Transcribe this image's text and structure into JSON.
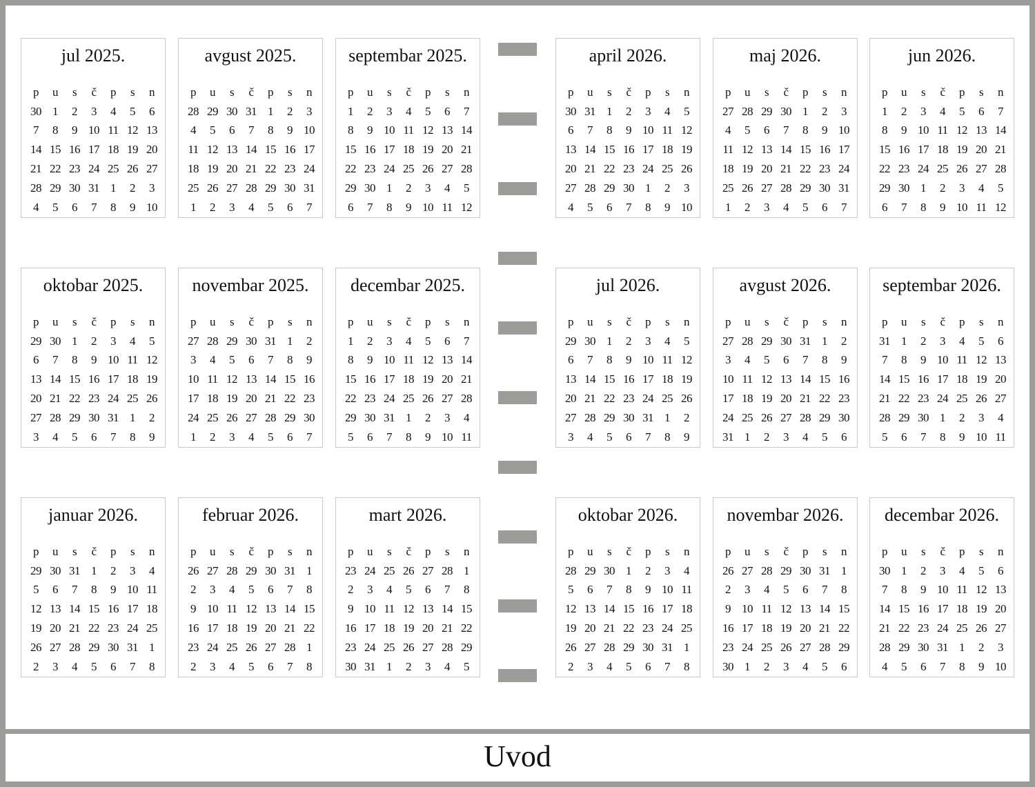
{
  "weekdays": [
    "p",
    "u",
    "s",
    "č",
    "p",
    "s",
    "n"
  ],
  "footer_title": "Uvod",
  "colors": {
    "frame": "#9c9c98",
    "box_border": "#c8c8c8"
  },
  "months": [
    {
      "title": "jul 2025.",
      "weeks": [
        "30 1 2 3 4 5 6",
        "7 8 9 10 11 12 13",
        "14 15 16 17 18 19 20",
        "21 22 23 24 25 26 27",
        "28 29 30 31 1 2 3",
        "4 5 6 7 8 9 10"
      ]
    },
    {
      "title": "avgust 2025.",
      "weeks": [
        "28 29 30 31 1 2 3",
        "4 5 6 7 8 9 10",
        "11 12 13 14 15 16 17",
        "18 19 20 21 22 23 24",
        "25 26 27 28 29 30 31",
        "1 2 3 4 5 6 7"
      ]
    },
    {
      "title": "septembar 2025.",
      "weeks": [
        "1 2 3 4 5 6 7",
        "8 9 10 11 12 13 14",
        "15 16 17 18 19 20 21",
        "22 23 24 25 26 27 28",
        "29 30 1 2 3 4 5",
        "6 7 8 9 10 11 12"
      ]
    },
    {
      "title": "april 2026.",
      "weeks": [
        "30 31 1 2 3 4 5",
        "6 7 8 9 10 11 12",
        "13 14 15 16 17 18 19",
        "20 21 22 23 24 25 26",
        "27 28 29 30 1 2 3",
        "4 5 6 7 8 9 10"
      ]
    },
    {
      "title": "maj 2026.",
      "weeks": [
        "27 28 29 30 1 2 3",
        "4 5 6 7 8 9 10",
        "11 12 13 14 15 16 17",
        "18 19 20 21 22 23 24",
        "25 26 27 28 29 30 31",
        "1 2 3 4 5 6 7"
      ]
    },
    {
      "title": "jun 2026.",
      "weeks": [
        "1 2 3 4 5 6 7",
        "8 9 10 11 12 13 14",
        "15 16 17 18 19 20 21",
        "22 23 24 25 26 27 28",
        "29 30 1 2 3 4 5",
        "6 7 8 9 10 11 12"
      ]
    },
    {
      "title": "oktobar 2025.",
      "weeks": [
        "29 30 1 2 3 4 5",
        "6 7 8 9 10 11 12",
        "13 14 15 16 17 18 19",
        "20 21 22 23 24 25 26",
        "27 28 29 30 31 1 2",
        "3 4 5 6 7 8 9"
      ]
    },
    {
      "title": "novembar 2025.",
      "weeks": [
        "27 28 29 30 31 1 2",
        "3 4 5 6 7 8 9",
        "10 11 12 13 14 15 16",
        "17 18 19 20 21 22 23",
        "24 25 26 27 28 29 30",
        "1 2 3 4 5 6 7"
      ]
    },
    {
      "title": "decembar 2025.",
      "weeks": [
        "1 2 3 4 5 6 7",
        "8 9 10 11 12 13 14",
        "15 16 17 18 19 20 21",
        "22 23 24 25 26 27 28",
        "29 30 31 1 2 3 4",
        "5 6 7 8 9 10 11"
      ]
    },
    {
      "title": "jul 2026.",
      "weeks": [
        "29 30 1 2 3 4 5",
        "6 7 8 9 10 11 12",
        "13 14 15 16 17 18 19",
        "20 21 22 23 24 25 26",
        "27 28 29 30 31 1 2",
        "3 4 5 6 7 8 9"
      ]
    },
    {
      "title": "avgust 2026.",
      "weeks": [
        "27 28 29 30 31 1 2",
        "3 4 5 6 7 8 9",
        "10 11 12 13 14 15 16",
        "17 18 19 20 21 22 23",
        "24 25 26 27 28 29 30",
        "31 1 2 3 4 5 6"
      ]
    },
    {
      "title": "septembar 2026.",
      "weeks": [
        "31 1 2 3 4 5 6",
        "7 8 9 10 11 12 13",
        "14 15 16 17 18 19 20",
        "21 22 23 24 25 26 27",
        "28 29 30 1 2 3 4",
        "5 6 7 8 9 10 11"
      ]
    },
    {
      "title": "januar 2026.",
      "weeks": [
        "29 30 31 1 2 3 4",
        "5 6 7 8 9 10 11",
        "12 13 14 15 16 17 18",
        "19 20 21 22 23 24 25",
        "26 27 28 29 30 31 1",
        "2 3 4 5 6 7 8"
      ]
    },
    {
      "title": "februar 2026.",
      "weeks": [
        "26 27 28 29 30 31 1",
        "2 3 4 5 6 7 8",
        "9 10 11 12 13 14 15",
        "16 17 18 19 20 21 22",
        "23 24 25 26 27 28 1",
        "2 3 4 5 6 7 8"
      ]
    },
    {
      "title": "mart 2026.",
      "weeks": [
        "23 24 25 26 27 28 1",
        "2 3 4 5 6 7 8",
        "9 10 11 12 13 14 15",
        "16 17 18 19 20 21 22",
        "23 24 25 26 27 28 29",
        "30 31 1 2 3 4 5"
      ]
    },
    {
      "title": "oktobar 2026.",
      "weeks": [
        "28 29 30 1 2 3 4",
        "5 6 7 8 9 10 11",
        "12 13 14 15 16 17 18",
        "19 20 21 22 23 24 25",
        "26 27 28 29 30 31 1",
        "2 3 4 5 6 7 8"
      ]
    },
    {
      "title": "novembar 2026.",
      "weeks": [
        "26 27 28 29 30 31 1",
        "2 3 4 5 6 7 8",
        "9 10 11 12 13 14 15",
        "16 17 18 19 20 21 22",
        "23 24 25 26 27 28 29",
        "30 1 2 3 4 5 6"
      ]
    },
    {
      "title": "decembar 2026.",
      "weeks": [
        "30 1 2 3 4 5 6",
        "7 8 9 10 11 12 13",
        "14 15 16 17 18 19 20",
        "21 22 23 24 25 26 27",
        "28 29 30 31 1 2 3",
        "4 5 6 7 8 9 10"
      ]
    }
  ]
}
